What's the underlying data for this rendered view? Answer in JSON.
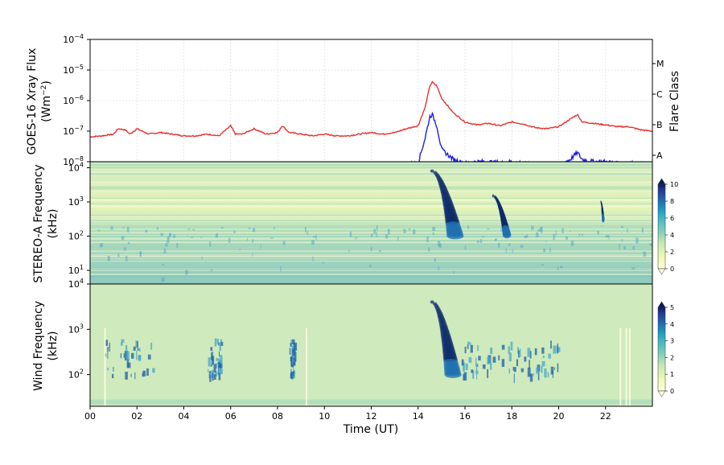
{
  "chart_data": [
    {
      "type": "line",
      "title": "",
      "ylabel_lines": [
        "GOES-16 Xray Flux",
        "(Wm$^{-2}$)"
      ],
      "ylabel_display": [
        "GOES-16 Xray Flux",
        "(Wm",
        "−2",
        ")"
      ],
      "y_scale": "log",
      "ylim": [
        1e-08,
        0.0001
      ],
      "y_ticks": [
        {
          "base": "10",
          "exp": "−8"
        },
        {
          "base": "10",
          "exp": "−7"
        },
        {
          "base": "10",
          "exp": "−6"
        },
        {
          "base": "10",
          "exp": "−5"
        },
        {
          "base": "10",
          "exp": "−4"
        }
      ],
      "right_axis": {
        "label": "Flare Class",
        "classes": [
          {
            "label": "A",
            "flux": 1e-08
          },
          {
            "label": "B",
            "flux": 1e-07
          },
          {
            "label": "C",
            "flux": 1e-06
          },
          {
            "label": "M",
            "flux": 1e-05
          }
        ]
      },
      "xlim": [
        0,
        24
      ],
      "grid": true,
      "series": [
        {
          "color": "#e8312e",
          "x": [
            0,
            0.5,
            1,
            1.2,
            1.5,
            1.7,
            2,
            2.5,
            3,
            3.5,
            4,
            4.5,
            5,
            5.5,
            6,
            6.2,
            6.5,
            7,
            7.5,
            8,
            8.2,
            8.5,
            9,
            9.5,
            10,
            10.5,
            11,
            11.5,
            12,
            12.5,
            13,
            13.5,
            14,
            14.3,
            14.5,
            14.6,
            14.8,
            15,
            15.5,
            16,
            16.5,
            17,
            17.5,
            18,
            18.5,
            19,
            19.5,
            20,
            20.5,
            20.8,
            21,
            21.5,
            22,
            22.5,
            23,
            23.5,
            24
          ],
          "y": [
            6.5e-08,
            7e-08,
            8e-08,
            1.2e-07,
            1.1e-07,
            8e-08,
            1.2e-07,
            8e-08,
            9e-08,
            8e-08,
            7e-08,
            7e-08,
            8e-08,
            7e-08,
            1.5e-07,
            8e-08,
            8e-08,
            1.2e-07,
            8e-08,
            9e-08,
            1.5e-07,
            9e-08,
            8e-08,
            7e-08,
            8e-08,
            7e-08,
            7e-08,
            8e-08,
            9e-08,
            8e-08,
            9e-08,
            1.2e-07,
            1.5e-07,
            6e-07,
            3e-06,
            4e-06,
            3e-06,
            1.2e-06,
            4e-07,
            2e-07,
            1.6e-07,
            1.8e-07,
            1.5e-07,
            2e-07,
            1.7e-07,
            1.3e-07,
            1.2e-07,
            1.4e-07,
            2.5e-07,
            3.5e-07,
            2e-07,
            1.8e-07,
            1.6e-07,
            1.4e-07,
            1.4e-07,
            1.1e-07,
            1e-07
          ]
        },
        {
          "color": "#1f1fe0",
          "x": [
            0,
            0.5,
            1,
            1.5,
            2,
            2.5,
            3,
            3.5,
            4,
            4.5,
            5,
            5.5,
            6,
            6.5,
            7,
            7.5,
            8,
            8.5,
            9,
            9.5,
            10,
            10.5,
            11,
            11.5,
            12,
            12.5,
            13,
            13.5,
            14,
            14.3,
            14.5,
            14.6,
            14.8,
            15,
            15.5,
            16,
            16.5,
            17,
            17.5,
            18,
            18.5,
            19,
            19.5,
            20,
            20.5,
            20.8,
            21,
            21.5,
            22,
            22.5,
            23,
            23.5,
            24
          ],
          "y": [
            7e-09,
            6.5e-09,
            7e-09,
            8e-09,
            7e-09,
            6e-09,
            7e-09,
            6e-09,
            5.5e-09,
            5.5e-09,
            6e-09,
            6e-09,
            6.5e-09,
            6e-09,
            6e-09,
            6e-09,
            6.5e-09,
            6e-09,
            6e-09,
            6e-09,
            6e-09,
            6e-09,
            6.5e-09,
            6.5e-09,
            7e-09,
            7e-09,
            7e-09,
            8e-09,
            9e-09,
            6e-08,
            3e-07,
            3.5e-07,
            1.5e-07,
            2.5e-08,
            1.2e-08,
            9e-09,
            1e-08,
            1e-08,
            9e-09,
            1e-08,
            9e-09,
            7e-09,
            7e-09,
            8e-09,
            1.2e-08,
            2e-08,
            1.2e-08,
            1e-08,
            1e-08,
            9e-09,
            9e-09,
            8e-09,
            8e-09
          ]
        }
      ]
    },
    {
      "type": "heatmap",
      "ylabel_lines": [
        "STEREO-A Frequency",
        "(kHz)"
      ],
      "y_scale": "log",
      "ylim": [
        4,
        15000
      ],
      "y_ticks": [
        {
          "base": "10",
          "exp": "1"
        },
        {
          "base": "10",
          "exp": "2"
        },
        {
          "base": "10",
          "exp": "3"
        },
        {
          "base": "10",
          "exp": "4"
        }
      ],
      "xlim": [
        0,
        24
      ],
      "colorbar": {
        "ticks": [
          "0",
          "2",
          "4",
          "6",
          "8",
          "10"
        ],
        "min": 0,
        "max": 10
      },
      "bursts": [
        {
          "t0": 14.6,
          "t1": 15.6,
          "f_start": 8000,
          "f_end": 90
        },
        {
          "t0": 17.2,
          "t1": 17.8,
          "f_start": 1500,
          "f_end": 100
        },
        {
          "t0": 21.8,
          "t1": 21.9,
          "f_start": 1000,
          "f_end": 300
        }
      ]
    },
    {
      "type": "heatmap",
      "ylabel_lines": [
        "Wind Frequency",
        "(kHz)"
      ],
      "y_scale": "log",
      "ylim": [
        20,
        10000
      ],
      "y_ticks": [
        {
          "base": "10",
          "exp": "2"
        },
        {
          "base": "10",
          "exp": "3"
        },
        {
          "base": "10",
          "exp": "4"
        }
      ],
      "xlim": [
        0,
        24
      ],
      "xlabel": "Time (UT)",
      "x_ticks": [
        "00",
        "02",
        "04",
        "06",
        "08",
        "10",
        "12",
        "14",
        "16",
        "18",
        "20",
        "22"
      ],
      "colorbar": {
        "ticks": [
          "0",
          "1",
          "2",
          "3",
          "4",
          "5"
        ],
        "min": 0,
        "max": 5
      },
      "bursts": [
        {
          "t0": 14.6,
          "t1": 15.5,
          "f_start": 4000,
          "f_end": 90
        }
      ]
    }
  ]
}
